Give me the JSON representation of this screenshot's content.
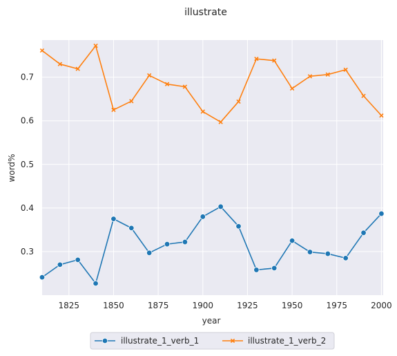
{
  "chart_data": {
    "type": "line",
    "title": "illustrate",
    "xlabel": "year",
    "ylabel": "word%",
    "xlim": [
      1810,
      2001
    ],
    "ylim": [
      0.2,
      0.785
    ],
    "x_ticks": [
      1825,
      1850,
      1875,
      1900,
      1925,
      1950,
      1975,
      2000
    ],
    "y_ticks": [
      0.3,
      0.4,
      0.5,
      0.6,
      0.7
    ],
    "grid": true,
    "legend_position": "bottom-center",
    "x": [
      1810,
      1820,
      1830,
      1840,
      1850,
      1860,
      1870,
      1880,
      1890,
      1900,
      1910,
      1920,
      1930,
      1940,
      1950,
      1960,
      1970,
      1980,
      1990,
      2000
    ],
    "series": [
      {
        "name": "illustrate_1_verb_1",
        "color": "#1f77b4",
        "marker": "circle",
        "values": [
          0.241,
          0.27,
          0.281,
          0.227,
          0.375,
          0.354,
          0.297,
          0.317,
          0.322,
          0.38,
          0.403,
          0.358,
          0.258,
          0.262,
          0.325,
          0.299,
          0.295,
          0.285,
          0.343,
          0.387
        ]
      },
      {
        "name": "illustrate_1_verb_2",
        "color": "#ff7f0e",
        "marker": "x",
        "values": [
          0.761,
          0.73,
          0.719,
          0.772,
          0.625,
          0.645,
          0.704,
          0.684,
          0.678,
          0.621,
          0.597,
          0.644,
          0.742,
          0.738,
          0.674,
          0.702,
          0.706,
          0.717,
          0.657,
          0.612
        ]
      }
    ]
  }
}
